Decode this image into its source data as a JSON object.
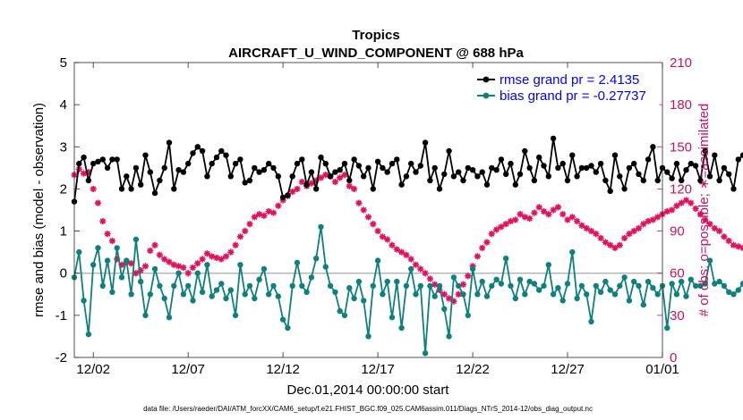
{
  "chart_data": {
    "type": "line",
    "title": "Tropics",
    "subtitle": "AIRCRAFT_U_WIND_COMPONENT @ 688 hPa",
    "xlabel": "Dec.01,2014 00:00:00 start",
    "ylabel": "rmse and bias (model - observation)",
    "y2label": "# of obs: o=possible; ∗=assimilated",
    "xlim": [
      0,
      31
    ],
    "ylim": [
      -2,
      5
    ],
    "y2lim": [
      0,
      210
    ],
    "x_ticks": [
      1,
      6,
      11,
      16,
      21,
      26,
      31
    ],
    "x_tick_labels": [
      "12/02",
      "12/07",
      "12/12",
      "12/17",
      "12/22",
      "12/27",
      "01/01"
    ],
    "y_ticks": [
      -2,
      -1,
      0,
      1,
      2,
      3,
      4,
      5
    ],
    "y_tick_labels": [
      "-2",
      "-1",
      "0",
      "1",
      "2",
      "3",
      "4",
      "5"
    ],
    "y2_ticks": [
      0,
      30,
      60,
      90,
      120,
      150,
      180,
      210
    ],
    "y2_tick_labels": [
      "0",
      "30",
      "60",
      "90",
      "120",
      "150",
      "180",
      "210"
    ],
    "legend_position": "top-right",
    "zero_line": 0,
    "footnote": "data file: /Users/raeder/DAI/ATM_forcXX/CAM6_setup/f.e21.FHIST_BGC.f09_025.CAM6assim.011/Diags_NTrS_2014-12/obs_diag_output.nc",
    "series": [
      {
        "name": "rmse grand pr = 2.4135",
        "color": "#000000",
        "marker": "filled-circle",
        "axis": "left",
        "x_start": 0.0,
        "x_step": 0.25,
        "values": [
          1.7,
          2.6,
          2.75,
          2.2,
          2.6,
          2.65,
          2.7,
          2.5,
          2.7,
          2.7,
          2.0,
          2.3,
          2.0,
          2.5,
          2.1,
          2.8,
          2.4,
          1.9,
          2.2,
          2.5,
          3.1,
          2.0,
          2.45,
          2.4,
          2.6,
          2.85,
          3.0,
          2.9,
          2.3,
          2.6,
          2.75,
          2.9,
          2.8,
          2.3,
          2.6,
          2.7,
          2.15,
          2.2,
          2.5,
          2.4,
          2.45,
          2.6,
          2.5,
          2.3,
          1.8,
          1.85,
          2.3,
          2.6,
          2.7,
          2.1,
          2.4,
          2.0,
          2.75,
          2.6,
          2.3,
          2.4,
          2.45,
          2.6,
          2.2,
          2.7,
          2.55,
          2.3,
          2.5,
          2.0,
          2.65,
          2.5,
          2.4,
          2.6,
          2.7,
          2.1,
          2.3,
          2.6,
          2.4,
          2.55,
          3.1,
          2.2,
          2.5,
          2.0,
          2.35,
          2.9,
          2.3,
          2.4,
          2.2,
          2.5,
          2.45,
          2.3,
          2.4,
          2.1,
          2.5,
          2.45,
          2.7,
          2.35,
          2.6,
          2.1,
          2.35,
          2.9,
          2.5,
          2.2,
          2.75,
          2.55,
          2.3,
          3.2,
          2.5,
          2.6,
          2.2,
          2.8,
          2.3,
          2.5,
          2.5,
          2.55,
          2.4,
          2.6,
          2.2,
          1.95,
          2.8,
          2.3,
          2.0,
          2.5,
          2.6,
          2.35,
          2.2,
          2.7,
          3.0,
          2.2,
          2.5,
          2.4,
          2.25,
          2.6,
          2.2,
          2.45,
          2.6,
          2.55,
          2.2,
          2.9,
          2.3,
          2.8,
          2.2,
          2.5,
          2.35,
          2.0,
          2.7,
          2.8,
          3.0,
          2.4,
          2.3,
          2.5,
          2.4,
          2.5,
          2.2,
          2.8,
          2.4,
          2.4,
          2.0,
          2.6,
          2.4,
          2.8,
          2.6,
          2.5,
          2.7,
          2.6,
          2.0,
          2.5,
          2.4,
          2.4,
          2.85,
          2.6,
          2.6,
          2.35,
          2.7,
          3.0,
          2.9,
          2.5,
          2.7,
          2.25,
          2.5,
          2.6,
          2.8,
          2.2,
          2.3,
          2.8,
          3.15,
          2.5,
          2.1,
          2.9,
          2.8,
          2.45,
          2.6,
          2.2,
          3.1,
          2.4,
          2.9,
          2.5,
          2.65,
          2.5
        ]
      },
      {
        "name": "bias grand pr = -0.27737",
        "color": "#0e807e",
        "marker": "filled-circle",
        "axis": "left",
        "x_start": 0.0,
        "x_step": 0.25,
        "values": [
          -0.1,
          0.5,
          -0.65,
          -1.45,
          0.2,
          0.6,
          -0.3,
          0.3,
          -0.45,
          0.6,
          -0.1,
          0.3,
          -0.5,
          0.8,
          -0.2,
          -1.0,
          -0.5,
          0.1,
          -0.3,
          -0.6,
          -1.05,
          -0.3,
          0.0,
          -0.5,
          -0.3,
          -0.65,
          0.0,
          -0.45,
          0.2,
          -0.55,
          -0.4,
          -0.25,
          -0.6,
          -0.4,
          -1.0,
          0.2,
          -0.5,
          -0.3,
          -0.6,
          -0.15,
          0.1,
          -0.5,
          -0.3,
          -0.55,
          -1.1,
          -1.3,
          -0.3,
          0.25,
          -0.3,
          -0.45,
          -0.1,
          0.35,
          1.1,
          0.15,
          -0.3,
          -0.45,
          -0.9,
          -1.0,
          -0.35,
          -0.6,
          -0.2,
          -0.65,
          -1.5,
          -0.3,
          0.3,
          -0.5,
          -0.2,
          -1.05,
          -0.2,
          -1.3,
          -0.3,
          0.1,
          -0.5,
          -0.3,
          -1.9,
          -0.3,
          -0.55,
          -0.3,
          -0.85,
          -1.5,
          -0.1,
          -0.3,
          -0.5,
          -1.0,
          0.1,
          -0.5,
          -0.2,
          -0.55,
          -0.3,
          -0.15,
          -0.25,
          0.35,
          -0.3,
          -0.6,
          -0.15,
          -0.5,
          -0.2,
          -0.25,
          -0.4,
          -0.3,
          0.2,
          -0.5,
          -0.35,
          -0.65,
          -0.25,
          0.5,
          -0.6,
          -0.3,
          -0.5,
          -1.15,
          -0.3,
          -0.45,
          -0.2,
          -0.4,
          -0.5,
          -0.3,
          -0.1,
          -0.65,
          -0.2,
          -0.3,
          -0.75,
          -0.2,
          -0.35,
          -0.5,
          -0.3,
          -1.3,
          -0.25,
          -0.5,
          -0.2,
          -0.55,
          -0.15,
          -0.3,
          -0.3,
          -0.25,
          0.3,
          -0.25,
          -0.2,
          -0.3,
          -0.45,
          -0.5,
          -0.4,
          -0.25,
          -0.35,
          -0.45,
          -0.7,
          -0.55,
          -0.3,
          -0.1,
          -0.35,
          -0.5,
          -0.2,
          -0.2,
          -0.7,
          -0.55,
          -0.15,
          -0.4,
          -0.5,
          -0.3,
          -0.25,
          -0.5,
          -0.3,
          -1.05,
          -0.2,
          -0.45,
          -0.3,
          -0.5,
          -0.3,
          -0.85,
          -0.25,
          -0.35,
          -0.5,
          -0.3,
          -0.2,
          -0.35,
          -0.5,
          -0.3,
          -0.55,
          -0.4,
          -0.4,
          -0.35,
          -0.3,
          -0.85,
          -0.3,
          -0.5,
          -0.5,
          -1.2,
          -0.4,
          -0.1,
          -0.5,
          -0.3,
          -0.3,
          -1.85,
          -0.2,
          0.25,
          0.0,
          0.8
        ]
      },
      {
        "name": "obs assimilated",
        "color": "#e0115f",
        "marker": "asterisk",
        "axis": "right",
        "x_start": 0.0,
        "x_step": 0.25,
        "values": [
          130,
          134,
          131,
          132,
          120,
          110,
          97,
          88,
          83,
          70,
          66,
          68,
          67,
          60,
          62,
          65,
          76,
          80,
          73,
          70,
          68,
          66,
          65,
          64,
          60,
          64,
          67,
          70,
          74,
          72,
          71,
          70,
          72,
          75,
          80,
          86,
          90,
          95,
          100,
          102,
          101,
          104,
          103,
          108,
          112,
          115,
          118,
          120,
          125,
          122,
          124,
          126,
          128,
          130,
          129,
          125,
          128,
          130,
          122,
          120,
          110,
          105,
          100,
          95,
          90,
          86,
          84,
          80,
          77,
          75,
          73,
          70,
          66,
          63,
          60,
          56,
          52,
          48,
          45,
          42,
          40,
          45,
          52,
          58,
          65,
          72,
          78,
          82,
          88,
          91,
          93,
          95,
          97,
          98,
          102,
          100,
          99,
          103,
          107,
          104,
          102,
          105,
          107,
          102,
          98,
          100,
          97,
          94,
          92,
          90,
          88,
          85,
          82,
          80,
          78,
          80,
          85,
          88,
          90,
          92,
          95,
          97,
          98,
          100,
          102,
          104,
          105,
          108,
          110,
          112,
          110,
          106,
          102,
          98,
          95,
          92,
          90,
          86,
          83,
          80,
          79,
          78,
          76,
          74,
          72,
          70,
          68,
          66,
          65,
          68,
          70,
          72,
          75,
          78,
          82,
          84,
          86,
          88,
          90,
          88,
          86,
          85,
          80,
          74,
          70,
          66,
          64,
          68,
          72,
          76,
          80,
          84,
          88,
          92,
          95,
          98,
          100,
          102,
          104,
          106,
          108,
          110,
          108,
          106,
          100,
          95,
          90,
          88,
          86,
          84,
          82,
          80,
          78,
          76,
          75,
          76,
          78,
          80,
          82,
          80,
          86,
          90,
          88,
          84
        ]
      }
    ]
  }
}
